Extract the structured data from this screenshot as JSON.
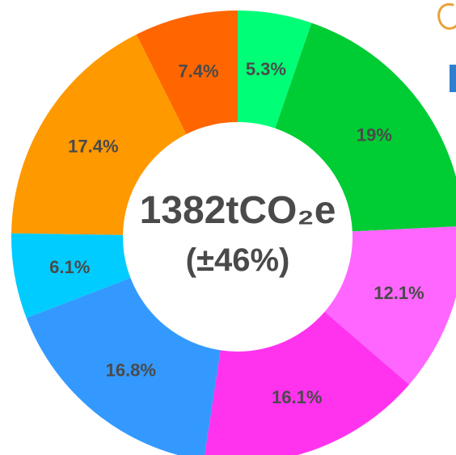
{
  "chart_data": {
    "type": "pie",
    "style": "donut",
    "center_text": {
      "total": "1382tCO₂e",
      "uncertainty": "(±46%)"
    },
    "slices": [
      {
        "label": "5.3%",
        "value": 5.3,
        "color": "#00ff77"
      },
      {
        "label": "19%",
        "value": 19.0,
        "color": "#00cc33"
      },
      {
        "label": "12.1%",
        "value": 12.1,
        "color": "#ff66ff"
      },
      {
        "label": "16.1%",
        "value": 16.1,
        "color": "#ff33ee"
      },
      {
        "label": "16.8%",
        "value": 16.8,
        "color": "#3399ff"
      },
      {
        "label": "6.1%",
        "value": 6.1,
        "color": "#00ccff"
      },
      {
        "label": "17.4%",
        "value": 17.4,
        "color": "#ff9900"
      },
      {
        "label": "7.4%",
        "value": 7.4,
        "color": "#ff6600"
      }
    ]
  }
}
